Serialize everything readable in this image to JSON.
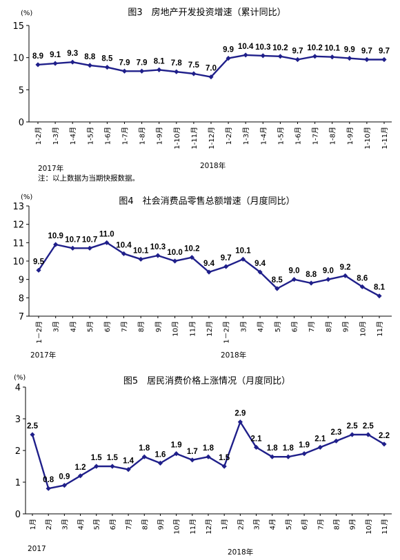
{
  "chart_data": [
    {
      "type": "line",
      "title": "图3　房地产开发投资增速（累计同比）",
      "unit": "(%)",
      "ylim": [
        0,
        15
      ],
      "yticks": [
        0,
        5,
        10,
        15
      ],
      "categories": [
        "1-2月",
        "1-3月",
        "1-4月",
        "1-5月",
        "1-6月",
        "1-7月",
        "1-8月",
        "1-9月",
        "1-10月",
        "1-11月",
        "1-12月",
        "1-2月",
        "1-3月",
        "1-4月",
        "1-5月",
        "1-6月",
        "1-7月",
        "1-8月",
        "1-9月",
        "1-10月",
        "1-11月"
      ],
      "values": [
        8.9,
        9.1,
        9.3,
        8.8,
        8.5,
        7.9,
        7.9,
        8.1,
        7.8,
        7.5,
        7.0,
        9.9,
        10.4,
        10.3,
        10.2,
        9.7,
        10.2,
        10.1,
        9.9,
        9.7,
        9.7
      ],
      "value_labels": [
        "8.9",
        "9.1",
        "9.3",
        "8.8",
        "8.5",
        "7.9",
        "7.9",
        "8.1",
        "7.8",
        "7.5",
        "7.0",
        "9.9",
        "10.4",
        "10.3",
        "10.2",
        "9.7",
        "10.2",
        "10.1",
        "9.9",
        "9.7",
        "9.7"
      ],
      "year_labels": [
        "2017年",
        "2018年"
      ],
      "note": "注：以上数据为当期快报数据。",
      "line_color": "#1f1f8a"
    },
    {
      "type": "line",
      "title": "图4　社会消费品零售总额增速（月度同比）",
      "unit": "(%)",
      "ylim": [
        7,
        13
      ],
      "yticks": [
        7,
        8,
        9,
        10,
        11,
        12,
        13
      ],
      "categories": [
        "1－2月",
        "3月",
        "4月",
        "5月",
        "6月",
        "7月",
        "8月",
        "9月",
        "10月",
        "11月",
        "12月",
        "1－2月",
        "3月",
        "4月",
        "5月",
        "6月",
        "7月",
        "8月",
        "9月",
        "10月",
        "11月"
      ],
      "values": [
        9.5,
        10.9,
        10.7,
        10.7,
        11.0,
        10.4,
        10.1,
        10.3,
        10.0,
        10.2,
        9.4,
        9.7,
        10.1,
        9.4,
        8.5,
        9.0,
        8.8,
        9.0,
        9.2,
        8.6,
        8.1
      ],
      "value_labels": [
        "9.5",
        "10.9",
        "10.7",
        "10.7",
        "11.0",
        "10.4",
        "10.1",
        "10.3",
        "10.0",
        "10.2",
        "9.4",
        "9.7",
        "10.1",
        "9.4",
        "8.5",
        "9.0",
        "8.8",
        "9.0",
        "9.2",
        "8.6",
        "8.1"
      ],
      "year_labels": [
        "2017年",
        "2018年"
      ],
      "line_color": "#1f1f8a"
    },
    {
      "type": "line",
      "title": "图5　居民消费价格上涨情况（月度同比）",
      "unit": "(%)",
      "ylim": [
        0,
        4
      ],
      "yticks": [
        0,
        1,
        2,
        3,
        4
      ],
      "categories": [
        "1月",
        "2月",
        "3月",
        "4月",
        "5月",
        "6月",
        "7月",
        "8月",
        "9月",
        "10月",
        "11月",
        "12月",
        "1月",
        "2月",
        "3月",
        "4月",
        "5月",
        "6月",
        "7月",
        "8月",
        "9月",
        "10月",
        "11月"
      ],
      "values": [
        2.5,
        0.8,
        0.9,
        1.2,
        1.5,
        1.5,
        1.4,
        1.8,
        1.6,
        1.9,
        1.7,
        1.8,
        1.5,
        2.9,
        2.1,
        1.8,
        1.8,
        1.9,
        2.1,
        2.3,
        2.5,
        2.5,
        2.2
      ],
      "value_labels": [
        "2.5",
        "0.8",
        "0.9",
        "1.2",
        "1.5",
        "1.5",
        "1.4",
        "1.8",
        "1.6",
        "1.9",
        "1.7",
        "1.8",
        "1.5",
        "2.9",
        "2.1",
        "1.8",
        "1.8",
        "1.9",
        "2.1",
        "2.3",
        "2.5",
        "2.5",
        "2.2"
      ],
      "year_labels": [
        "2017",
        "2018年"
      ],
      "line_color": "#1f1f8a"
    }
  ]
}
